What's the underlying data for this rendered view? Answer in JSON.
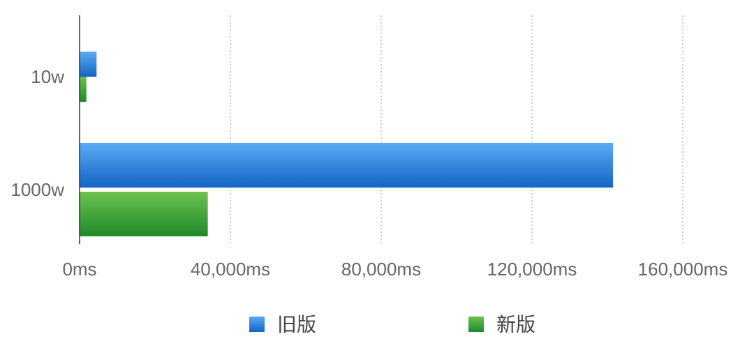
{
  "chart_data": {
    "type": "bar",
    "orientation": "horizontal",
    "categories": [
      "10w",
      "1000w"
    ],
    "series": [
      {
        "name": "旧版",
        "values": [
          4500,
          141500
        ],
        "color": "#2f86e0"
      },
      {
        "name": "新版",
        "values": [
          1800,
          34000
        ],
        "color": "#3da33d"
      }
    ],
    "x_tick_labels": [
      "0ms",
      "40,000ms",
      "80,000ms",
      "120,000ms",
      "160,000ms"
    ],
    "x_ticks": [
      0,
      40000,
      80000,
      120000,
      160000
    ],
    "xlim": [
      0,
      160000
    ],
    "grid": "vertical-dotted",
    "legend_position": "bottom-center",
    "title": "",
    "xlabel": "",
    "ylabel": ""
  }
}
